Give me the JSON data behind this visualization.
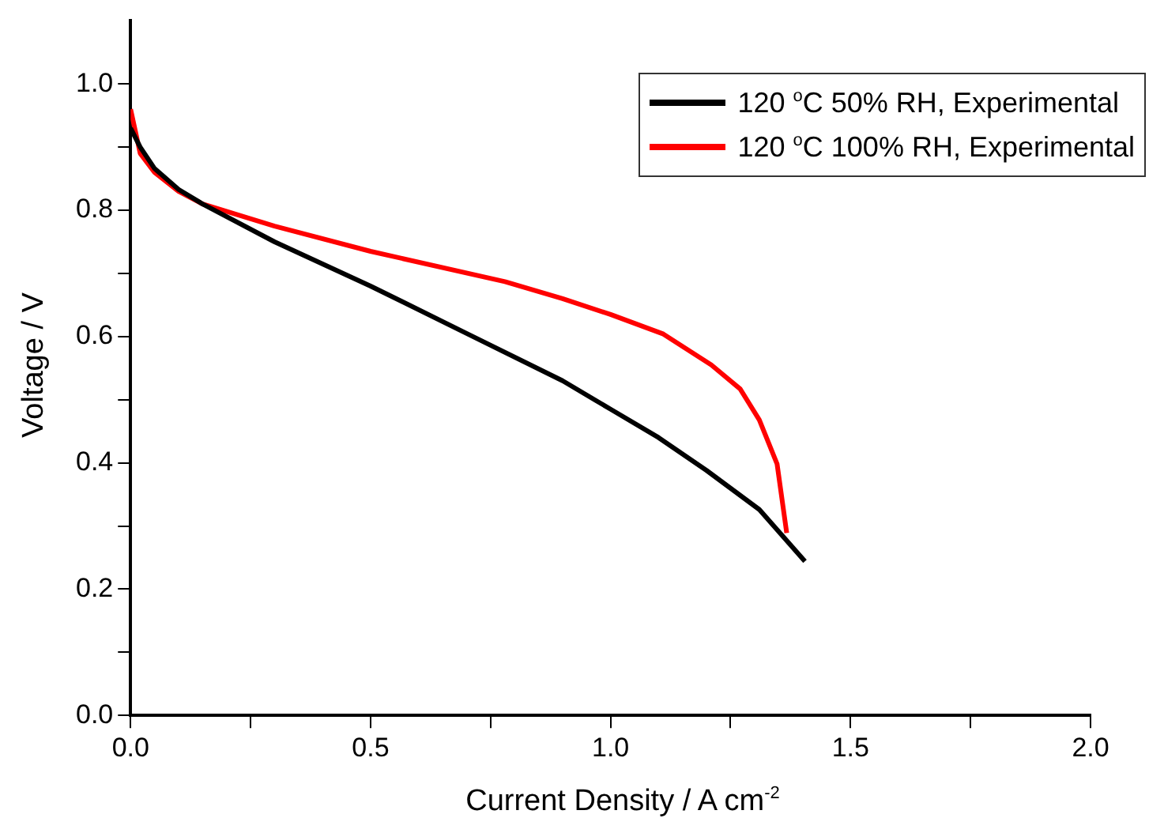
{
  "chart_data": {
    "type": "line",
    "xlabel": "Current Density / A cm$^{-2}$",
    "ylabel": "Voltage / V",
    "xlim": [
      0,
      2
    ],
    "ylim": [
      0,
      1.1
    ],
    "xticks": [
      {
        "value": 0,
        "label": "0.0"
      },
      {
        "value": 0.25,
        "label": null
      },
      {
        "value": 0.5,
        "label": "0.5"
      },
      {
        "value": 0.75,
        "label": null
      },
      {
        "value": 1,
        "label": "1.0"
      },
      {
        "value": 1.25,
        "label": null
      },
      {
        "value": 1.5,
        "label": "1.5"
      },
      {
        "value": 1.75,
        "label": null
      },
      {
        "value": 2,
        "label": "2.0"
      }
    ],
    "yticks": [
      {
        "value": 0,
        "label": "0.0"
      },
      {
        "value": 0.1,
        "label": null
      },
      {
        "value": 0.2,
        "label": "0.2"
      },
      {
        "value": 0.3,
        "label": null
      },
      {
        "value": 0.4,
        "label": "0.4"
      },
      {
        "value": 0.5,
        "label": null
      },
      {
        "value": 0.6,
        "label": "0.6"
      },
      {
        "value": 0.7,
        "label": null
      },
      {
        "value": 0.8,
        "label": "0.8"
      },
      {
        "value": 0.9,
        "label": null
      },
      {
        "value": 1,
        "label": "1.0"
      }
    ],
    "grid": false,
    "legend": "top right",
    "marker": "none",
    "line_style": "solid",
    "series": [
      {
        "name": "120 $^{o}$C 50% RH, Experimental",
        "color": "#000000",
        "x": [
          0,
          0.02,
          0.05,
          0.1,
          0.15,
          0.3,
          0.5,
          0.7,
          0.9,
          1.0,
          1.1,
          1.2,
          1.31,
          1.405
        ],
        "values": [
          0.93,
          0.9,
          0.866,
          0.833,
          0.81,
          0.75,
          0.68,
          0.605,
          0.53,
          0.485,
          0.44,
          0.388,
          0.326,
          0.244
        ]
      },
      {
        "name": "120 $^{o}$C 100% RH, Experimental",
        "color": "#ff0000",
        "x": [
          0,
          0.02,
          0.05,
          0.1,
          0.15,
          0.3,
          0.5,
          0.78,
          0.9,
          1.0,
          1.11,
          1.21,
          1.27,
          1.31,
          1.347,
          1.367
        ],
        "values": [
          0.96,
          0.89,
          0.86,
          0.83,
          0.81,
          0.775,
          0.735,
          0.687,
          0.66,
          0.635,
          0.604,
          0.555,
          0.517,
          0.468,
          0.398,
          0.289
        ]
      }
    ]
  }
}
